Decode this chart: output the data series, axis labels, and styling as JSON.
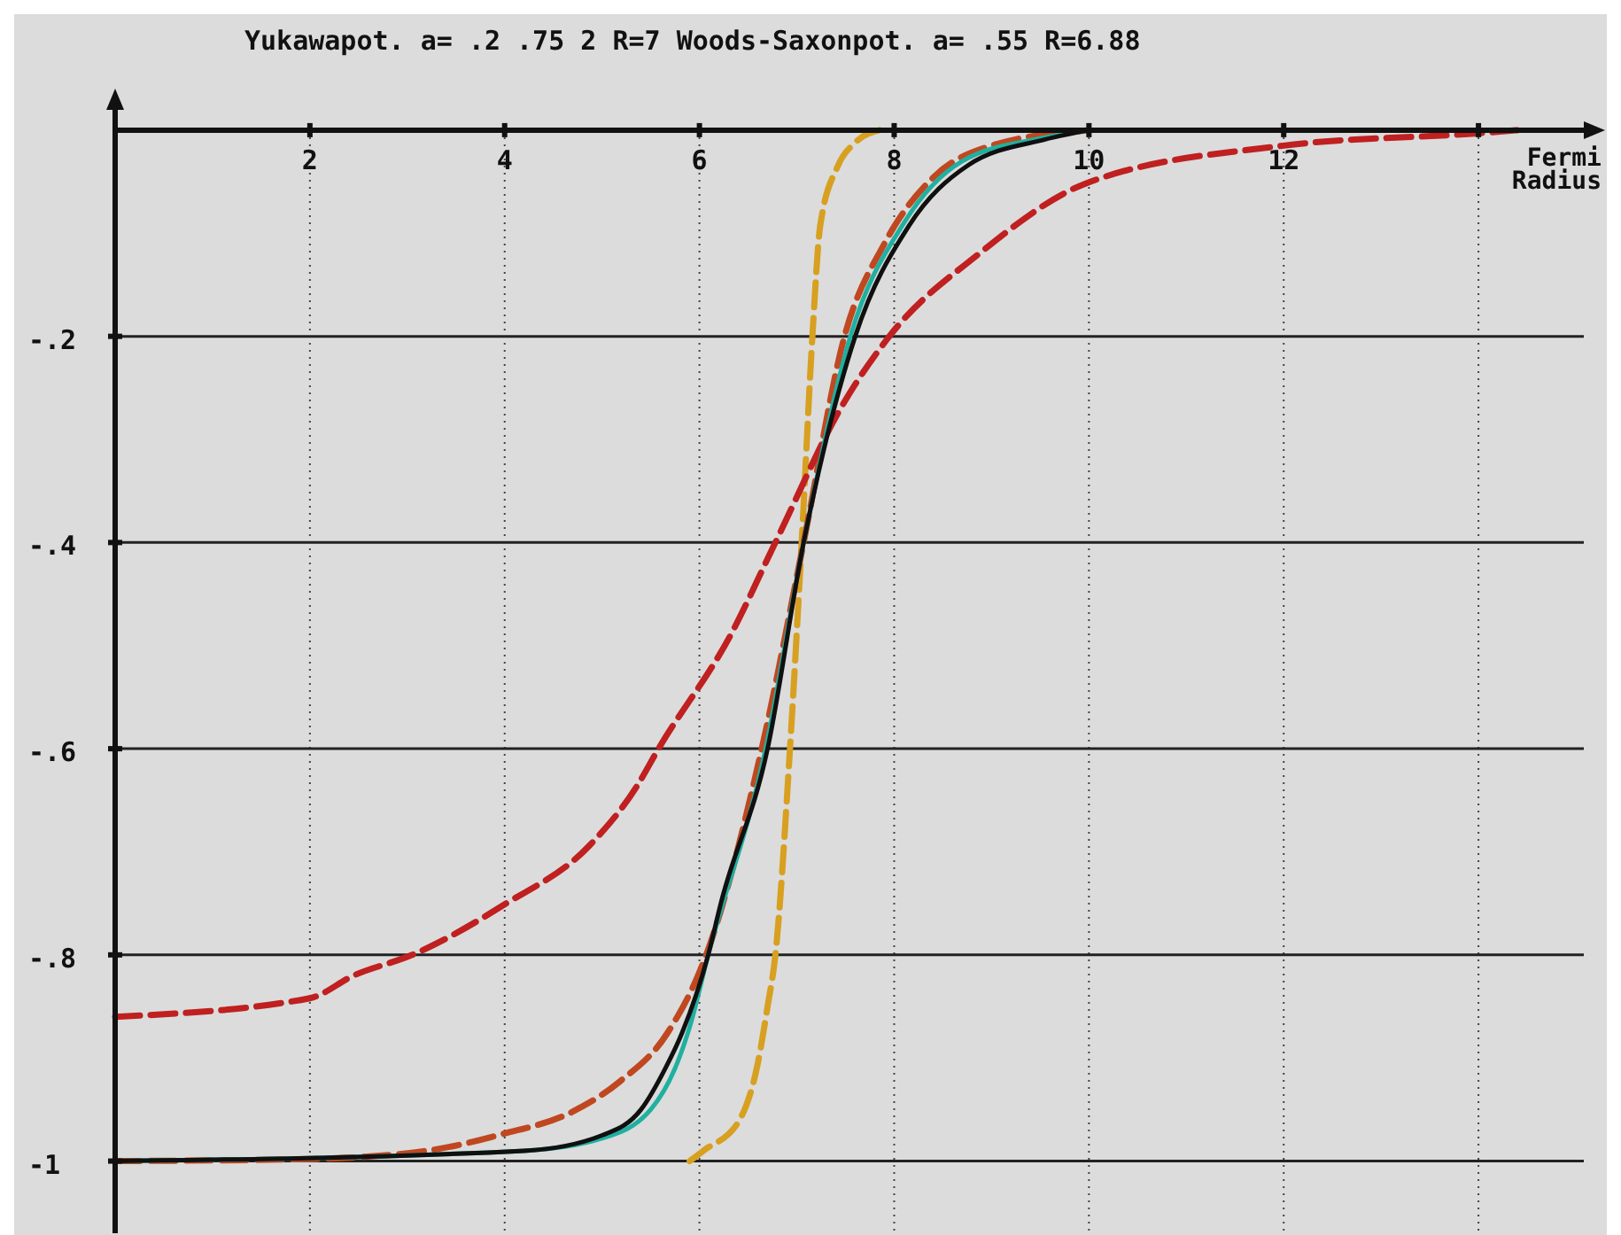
{
  "chart_data": {
    "type": "line",
    "title": "Yukawapot. a= .2 .75 2 R=7  Woods-Saxonpot. a= .55 R=6.88",
    "xlabel": "Fermi Radius",
    "xlim": [
      0,
      15.3
    ],
    "ylim": [
      -1.07,
      0.03
    ],
    "xticks": [
      {
        "value": 2,
        "label": "2"
      },
      {
        "value": 4,
        "label": "4"
      },
      {
        "value": 6,
        "label": "6"
      },
      {
        "value": 8,
        "label": "8"
      },
      {
        "value": 10,
        "label": "10"
      },
      {
        "value": 12,
        "label": "12"
      },
      {
        "value": 14,
        "label": null
      }
    ],
    "yticks": [
      {
        "value": -0.2,
        "label": "-.2"
      },
      {
        "value": -0.4,
        "label": "-.4"
      },
      {
        "value": -0.6,
        "label": "-.6"
      },
      {
        "value": -0.8,
        "label": "-.8"
      },
      -1
    ],
    "grid": true,
    "marker": "none",
    "series": [
      {
        "color": "#d8a020",
        "line_style": "dashed",
        "x": [
          5.9,
          6.04,
          6.4,
          6.6,
          6.7,
          6.78,
          6.93,
          7.05,
          7.16,
          7.24,
          7.42,
          7.6,
          7.85
        ],
        "values": [
          -1,
          -0.99,
          -0.962,
          -0.905,
          -0.85,
          -0.8,
          -0.6,
          -0.4,
          -0.2,
          -0.093,
          -0.035,
          -0.012,
          0
        ]
      },
      {
        "color": "#c04820",
        "line_style": "dashed",
        "x": [
          0,
          2,
          3.2,
          3.97,
          4.7,
          5.18,
          5.67,
          6.07,
          6.64,
          7.07,
          7.49,
          7.9,
          8.4,
          9,
          10
        ],
        "values": [
          -1,
          -0.998,
          -0.99,
          -0.974,
          -0.952,
          -0.923,
          -0.876,
          -0.8,
          -0.6,
          -0.4,
          -0.2,
          -0.11,
          -0.046,
          -0.015,
          0
        ]
      },
      {
        "color": "#c02020",
        "line_style": "dashed",
        "x": [
          0,
          2,
          2.45,
          3.05,
          4,
          4.87,
          5.36,
          5.58,
          6.33,
          6.78,
          7.48,
          7.95,
          8.87,
          9.96,
          12,
          14,
          14.4
        ],
        "values": [
          -0.86,
          -0.842,
          -0.82,
          -0.8,
          -0.751,
          -0.694,
          -0.636,
          -0.6,
          -0.488,
          -0.4,
          -0.265,
          -0.2,
          -0.12,
          -0.052,
          -0.015,
          -0.003,
          0
        ]
      },
      {
        "color": "#20b0a0",
        "line_style": "solid",
        "x": [
          0,
          4.2,
          5,
          5.5,
          5.75,
          5.9,
          6.09,
          6.68,
          7.07,
          7.55,
          8.1,
          8.7,
          9.5,
          10
        ],
        "values": [
          -1,
          -0.99,
          -0.978,
          -0.95,
          -0.91,
          -0.87,
          -0.8,
          -0.6,
          -0.4,
          -0.2,
          -0.09,
          -0.03,
          -0.008,
          0
        ]
      },
      {
        "color": "#101010",
        "line_style": "solid",
        "x": [
          0,
          4.2,
          5,
          5.4,
          5.65,
          5.82,
          6.09,
          6.22,
          6.7,
          7.07,
          7.6,
          8.15,
          8.76,
          9.55,
          10
        ],
        "values": [
          -1,
          -0.99,
          -0.975,
          -0.95,
          -0.91,
          -0.876,
          -0.8,
          -0.75,
          -0.6,
          -0.4,
          -0.2,
          -0.093,
          -0.034,
          -0.009,
          0
        ]
      }
    ]
  }
}
